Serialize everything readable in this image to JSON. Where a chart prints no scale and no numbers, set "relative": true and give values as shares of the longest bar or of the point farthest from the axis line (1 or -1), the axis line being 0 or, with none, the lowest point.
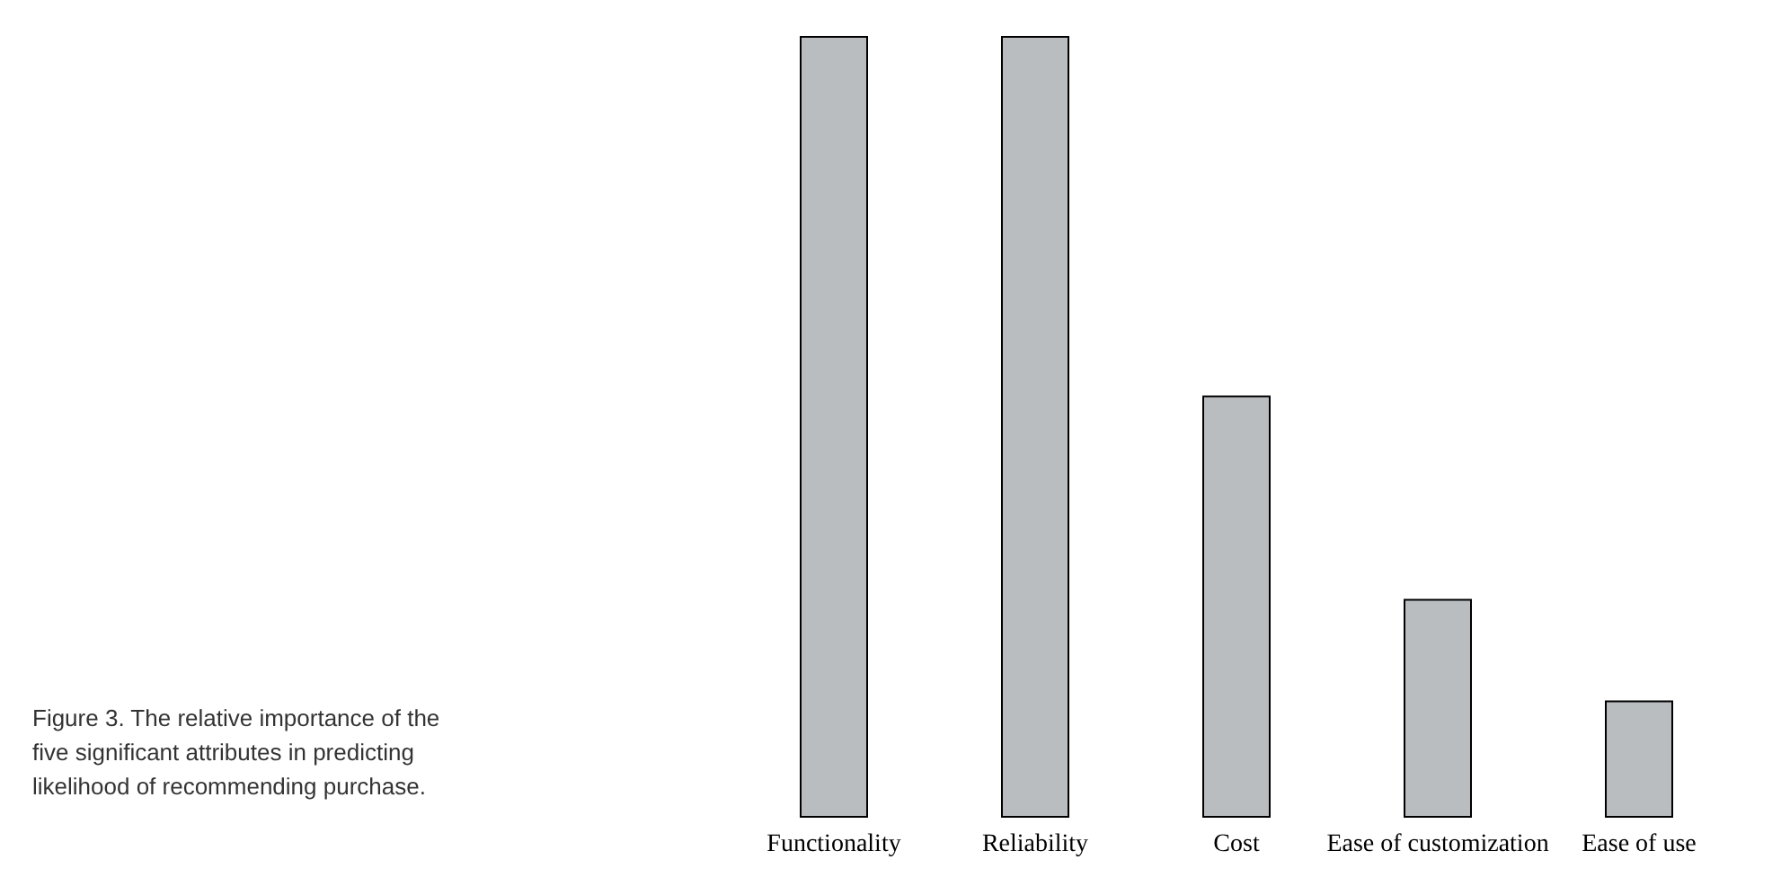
{
  "chart_data": {
    "type": "bar",
    "relative": true,
    "categories": [
      "Functionality",
      "Reliability",
      "Cost",
      "Ease of customization",
      "Ease of use"
    ],
    "values": [
      1,
      1,
      0.54,
      0.28,
      0.15
    ],
    "color": "#b9bdc0",
    "annotations": [
      "Figure 3. The relative importance of the five significant attributes in predicting likelihood of recommending purchase."
    ]
  }
}
